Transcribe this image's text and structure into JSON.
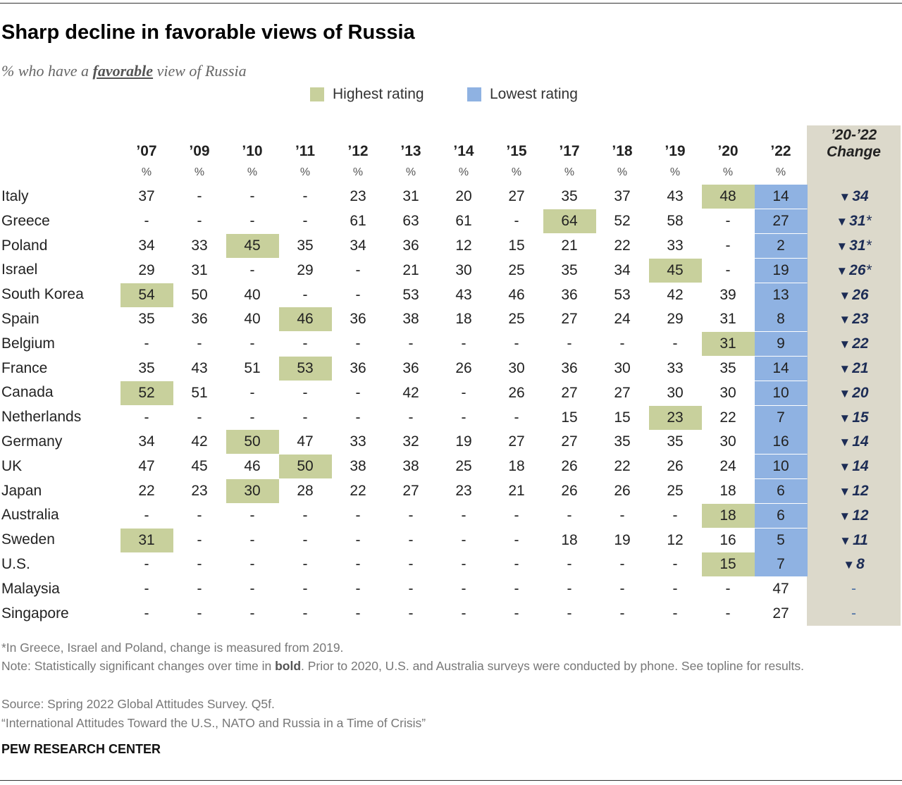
{
  "title": "Sharp decline in favorable views of Russia",
  "subtitle": {
    "prefix": "% who have a ",
    "emphasis": "favorable",
    "suffix": " view of Russia"
  },
  "legend": {
    "highest": "Highest rating",
    "lowest": "Lowest rating"
  },
  "colors": {
    "highest": "#c8d09c",
    "lowest": "#8fb2e2",
    "change_bg": "#dcd9cb",
    "arrow": "#1c2c55"
  },
  "unit_label": "%",
  "change_header": [
    "’20-’22",
    "Change"
  ],
  "chart_data": {
    "type": "table",
    "title": "Sharp decline in favorable views of Russia",
    "columns": [
      "’07",
      "’09",
      "’10",
      "’11",
      "’12",
      "’13",
      "’14",
      "’15",
      "’17",
      "’18",
      "’19",
      "’20",
      "’22"
    ],
    "rows": [
      {
        "country": "Italy",
        "values": [
          "37",
          "-",
          "-",
          "-",
          "23",
          "31",
          "20",
          "27",
          "35",
          "37",
          "43",
          "48",
          "14"
        ],
        "highest": 11,
        "lowest": 12,
        "change": "34",
        "note": ""
      },
      {
        "country": "Greece",
        "values": [
          "-",
          "-",
          "-",
          "-",
          "61",
          "63",
          "61",
          "-",
          "64",
          "52",
          "58",
          "-",
          "27"
        ],
        "highest": 8,
        "lowest": 12,
        "change": "31",
        "note": "*"
      },
      {
        "country": "Poland",
        "values": [
          "34",
          "33",
          "45",
          "35",
          "34",
          "36",
          "12",
          "15",
          "21",
          "22",
          "33",
          "-",
          "2"
        ],
        "highest": 2,
        "lowest": 12,
        "change": "31",
        "note": "*"
      },
      {
        "country": "Israel",
        "values": [
          "29",
          "31",
          "-",
          "29",
          "-",
          "21",
          "30",
          "25",
          "35",
          "34",
          "45",
          "-",
          "19"
        ],
        "highest": 10,
        "lowest": 12,
        "change": "26",
        "note": "*"
      },
      {
        "country": "South Korea",
        "values": [
          "54",
          "50",
          "40",
          "-",
          "-",
          "53",
          "43",
          "46",
          "36",
          "53",
          "42",
          "39",
          "13"
        ],
        "highest": 0,
        "lowest": 12,
        "change": "26",
        "note": ""
      },
      {
        "country": "Spain",
        "values": [
          "35",
          "36",
          "40",
          "46",
          "36",
          "38",
          "18",
          "25",
          "27",
          "24",
          "29",
          "31",
          "8"
        ],
        "highest": 3,
        "lowest": 12,
        "change": "23",
        "note": ""
      },
      {
        "country": "Belgium",
        "values": [
          "-",
          "-",
          "-",
          "-",
          "-",
          "-",
          "-",
          "-",
          "-",
          "-",
          "-",
          "31",
          "9"
        ],
        "highest": 11,
        "lowest": 12,
        "change": "22",
        "note": ""
      },
      {
        "country": "France",
        "values": [
          "35",
          "43",
          "51",
          "53",
          "36",
          "36",
          "26",
          "30",
          "36",
          "30",
          "33",
          "35",
          "14"
        ],
        "highest": 3,
        "lowest": 12,
        "change": "21",
        "note": ""
      },
      {
        "country": "Canada",
        "values": [
          "52",
          "51",
          "-",
          "-",
          "-",
          "42",
          "-",
          "26",
          "27",
          "27",
          "30",
          "30",
          "10"
        ],
        "highest": 0,
        "lowest": 12,
        "change": "20",
        "note": ""
      },
      {
        "country": "Netherlands",
        "values": [
          "-",
          "-",
          "-",
          "-",
          "-",
          "-",
          "-",
          "-",
          "15",
          "15",
          "23",
          "22",
          "7"
        ],
        "highest": 10,
        "lowest": 12,
        "change": "15",
        "note": ""
      },
      {
        "country": "Germany",
        "values": [
          "34",
          "42",
          "50",
          "47",
          "33",
          "32",
          "19",
          "27",
          "27",
          "35",
          "35",
          "30",
          "16"
        ],
        "highest": 2,
        "lowest": 12,
        "change": "14",
        "note": ""
      },
      {
        "country": "UK",
        "values": [
          "47",
          "45",
          "46",
          "50",
          "38",
          "38",
          "25",
          "18",
          "26",
          "22",
          "26",
          "24",
          "10"
        ],
        "highest": 3,
        "lowest": 12,
        "change": "14",
        "note": ""
      },
      {
        "country": "Japan",
        "values": [
          "22",
          "23",
          "30",
          "28",
          "22",
          "27",
          "23",
          "21",
          "26",
          "26",
          "25",
          "18",
          "6"
        ],
        "highest": 2,
        "lowest": 12,
        "change": "12",
        "note": ""
      },
      {
        "country": "Australia",
        "values": [
          "-",
          "-",
          "-",
          "-",
          "-",
          "-",
          "-",
          "-",
          "-",
          "-",
          "-",
          "18",
          "6"
        ],
        "highest": 11,
        "lowest": 12,
        "change": "12",
        "note": ""
      },
      {
        "country": "Sweden",
        "values": [
          "31",
          "-",
          "-",
          "-",
          "-",
          "-",
          "-",
          "-",
          "18",
          "19",
          "12",
          "16",
          "5"
        ],
        "highest": 0,
        "lowest": 12,
        "change": "11",
        "note": ""
      },
      {
        "country": "U.S.",
        "values": [
          "-",
          "-",
          "-",
          "-",
          "-",
          "-",
          "-",
          "-",
          "-",
          "-",
          "-",
          "15",
          "7"
        ],
        "highest": 11,
        "lowest": 12,
        "change": "8",
        "note": ""
      },
      {
        "country": "Malaysia",
        "values": [
          "-",
          "-",
          "-",
          "-",
          "-",
          "-",
          "-",
          "-",
          "-",
          "-",
          "-",
          "-",
          "47"
        ],
        "highest": null,
        "lowest": null,
        "change": "-",
        "note": ""
      },
      {
        "country": "Singapore",
        "values": [
          "-",
          "-",
          "-",
          "-",
          "-",
          "-",
          "-",
          "-",
          "-",
          "-",
          "-",
          "-",
          "27"
        ],
        "highest": null,
        "lowest": null,
        "change": "-",
        "note": ""
      }
    ]
  },
  "notes": {
    "footnote": "*In Greece, Israel and Poland, change is measured from 2019.",
    "note_prefix": "Note: Statistically significant changes over time in ",
    "note_bold": "bold",
    "note_suffix": ". Prior to 2020, U.S. and Australia surveys were conducted by phone. See topline for results.",
    "source": "Source: Spring 2022 Global Attitudes Survey. Q5f.",
    "report": "“International Attitudes Toward the U.S., NATO and Russia in a Time of Crisis”",
    "brand": "PEW RESEARCH CENTER"
  }
}
